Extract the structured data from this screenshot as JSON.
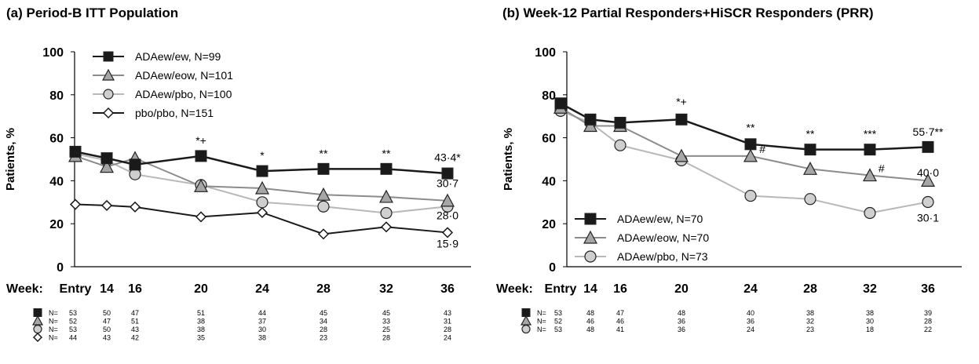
{
  "colors": {
    "ew": "#1a1a1a",
    "eow": "#8c8c8c",
    "eow_fill": "#a6a6a6",
    "pbo": "#b8b8b8",
    "pbo_fill": "#cfcfcf",
    "pbopbo": "#1a1a1a",
    "axis": "#000000"
  },
  "chart_data": [
    {
      "type": "line",
      "panel_label": "(a)",
      "title": "Period-B ITT Population",
      "ylabel": "Patients, %",
      "xlabel": "Week:",
      "ylim": [
        0,
        100
      ],
      "yticks": [
        0,
        20,
        40,
        60,
        80,
        100
      ],
      "x": [
        0,
        14,
        16,
        20,
        24,
        28,
        32,
        36
      ],
      "x_tick_labels": [
        "Entry",
        "14",
        "16",
        "20",
        "24",
        "28",
        "32",
        "36"
      ],
      "legend_position": "top-left",
      "series": [
        {
          "key": "ew",
          "name": "ADAew/ew, N=99",
          "marker": "square",
          "values": [
            53.5,
            50.5,
            47.5,
            51.5,
            44.5,
            45.5,
            45.5,
            43.4
          ],
          "n": [
            "53",
            "50",
            "47",
            "51",
            "44",
            "45",
            "45",
            "43"
          ]
        },
        {
          "key": "eow",
          "name": "ADAew/eow, N=101",
          "marker": "triangle",
          "values": [
            51.5,
            46.5,
            50.5,
            37.5,
            36.5,
            33.5,
            32.5,
            30.7
          ],
          "n": [
            "52",
            "47",
            "51",
            "38",
            "37",
            "34",
            "33",
            "31"
          ]
        },
        {
          "key": "pbo",
          "name": "ADAew/pbo, N=100",
          "marker": "circle",
          "values": [
            52.5,
            49.5,
            43.0,
            38.0,
            30.0,
            28.0,
            25.0,
            28.0
          ],
          "n": [
            "53",
            "50",
            "43",
            "38",
            "30",
            "28",
            "25",
            "28"
          ]
        },
        {
          "key": "pbopbo",
          "name": "pbo/pbo, N=151",
          "marker": "diamond",
          "values": [
            29.0,
            28.5,
            27.8,
            23.2,
            25.2,
            15.2,
            18.5,
            15.9
          ],
          "n": [
            "44",
            "43",
            "42",
            "35",
            "38",
            "23",
            "28",
            "24"
          ]
        }
      ],
      "annotations": [
        {
          "text": "*+",
          "x": 20,
          "y": 57
        },
        {
          "text": "*",
          "x": 24,
          "y": 50
        },
        {
          "text": "**",
          "x": 28,
          "y": 51
        },
        {
          "text": "**",
          "x": 32,
          "y": 51
        },
        {
          "text": "43·4*",
          "x": 36,
          "y": 49
        },
        {
          "text": "30·7",
          "x": 36,
          "y": 37
        },
        {
          "text": "28·0",
          "x": 36,
          "y": 22
        },
        {
          "text": "15·9",
          "x": 36,
          "y": 9
        }
      ],
      "n_prefix": "N="
    },
    {
      "type": "line",
      "panel_label": "(b)",
      "title": "Week-12 Partial Responders+HiSCR Responders (PRR)",
      "ylabel": "Patients, %",
      "xlabel": "Week:",
      "ylim": [
        0,
        100
      ],
      "yticks": [
        0,
        20,
        40,
        60,
        80,
        100
      ],
      "x": [
        0,
        14,
        16,
        20,
        24,
        28,
        32,
        36
      ],
      "x_tick_labels": [
        "Entry",
        "14",
        "16",
        "20",
        "24",
        "28",
        "32",
        "36"
      ],
      "legend_position": "bottom-left",
      "series": [
        {
          "key": "ew",
          "name": "ADAew/ew, N=70",
          "marker": "square",
          "values": [
            76.0,
            68.5,
            67.0,
            68.5,
            57.0,
            54.5,
            54.5,
            55.7
          ],
          "n": [
            "53",
            "48",
            "47",
            "48",
            "40",
            "38",
            "38",
            "39"
          ]
        },
        {
          "key": "eow",
          "name": "ADAew/eow, N=70",
          "marker": "triangle",
          "values": [
            74.0,
            65.5,
            65.5,
            51.5,
            51.5,
            45.5,
            42.5,
            40.0
          ],
          "n": [
            "52",
            "46",
            "46",
            "36",
            "36",
            "32",
            "30",
            "28"
          ]
        },
        {
          "key": "pbo",
          "name": "ADAew/pbo, N=73",
          "marker": "circle",
          "values": [
            72.5,
            67.0,
            56.5,
            49.5,
            33.0,
            31.5,
            25.0,
            30.1
          ],
          "n": [
            "53",
            "48",
            "41",
            "36",
            "24",
            "23",
            "18",
            "22"
          ]
        }
      ],
      "annotations": [
        {
          "text": "*+",
          "x": 20,
          "y": 75
        },
        {
          "text": "**",
          "x": 24,
          "y": 63
        },
        {
          "text": "**",
          "x": 28,
          "y": 60
        },
        {
          "text": "***",
          "x": 32,
          "y": 60
        },
        {
          "text": "55·7**",
          "x": 36,
          "y": 61
        },
        {
          "text": "#",
          "x": 24.8,
          "y": 53
        },
        {
          "text": "#",
          "x": 32.8,
          "y": 44
        },
        {
          "text": "40·0",
          "x": 37.6,
          "y": 42
        },
        {
          "text": "30·1",
          "x": 36,
          "y": 21
        }
      ],
      "n_prefix": "N="
    }
  ]
}
